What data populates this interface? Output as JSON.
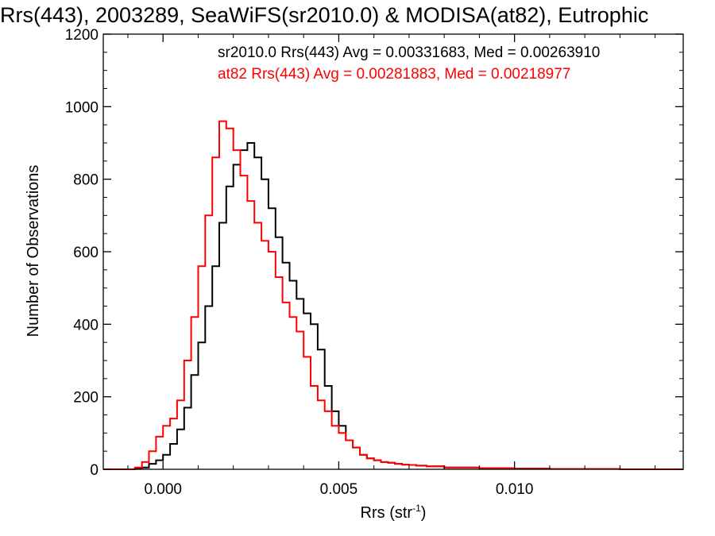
{
  "chart_data": {
    "type": "line",
    "style": "histogram-step",
    "title": "Rrs(443), 2003289, SeaWiFS(sr2010.0) & MODISA(at82), Eutrophic",
    "xlabel_base": "Rrs (str",
    "xlabel_sup": "-1",
    "xlabel_close": ")",
    "ylabel": "Number of Observations",
    "xlim": [
      -0.0017,
      0.0148
    ],
    "ylim": [
      0,
      1200
    ],
    "x_ticks": [
      0.0,
      0.005,
      0.01
    ],
    "x_tick_labels": [
      "0.000",
      "0.005",
      "0.010"
    ],
    "y_ticks": [
      0,
      200,
      400,
      600,
      800,
      1000,
      1200
    ],
    "y_tick_labels": [
      "0",
      "200",
      "400",
      "600",
      "800",
      "1000",
      "1200"
    ],
    "grid": false,
    "legend_position": "top-right",
    "series": [
      {
        "name": "sr2010.0 Rrs(443) Avg = 0.00331683, Med = 0.00263910",
        "color": "#000000",
        "x": [
          -0.0017,
          -0.001,
          -0.0008,
          -0.0006,
          -0.0004,
          -0.0002,
          0.0,
          0.0002,
          0.0004,
          0.0006,
          0.0008,
          0.001,
          0.0012,
          0.0014,
          0.0016,
          0.0018,
          0.002,
          0.0022,
          0.0024,
          0.0026,
          0.0028,
          0.003,
          0.0032,
          0.0034,
          0.0036,
          0.0038,
          0.004,
          0.0042,
          0.0044,
          0.0046,
          0.0048,
          0.005,
          0.0052,
          0.0054,
          0.0056,
          0.0058,
          0.006,
          0.0062,
          0.0064,
          0.0066,
          0.0068,
          0.007,
          0.0072,
          0.0075,
          0.008,
          0.009,
          0.01,
          0.011,
          0.012,
          0.013,
          0.014,
          0.0148
        ],
        "y": [
          0,
          0,
          2,
          5,
          15,
          25,
          40,
          70,
          110,
          170,
          260,
          350,
          450,
          560,
          680,
          780,
          840,
          880,
          900,
          860,
          800,
          720,
          640,
          570,
          520,
          470,
          430,
          400,
          330,
          230,
          160,
          120,
          80,
          60,
          40,
          30,
          25,
          20,
          18,
          15,
          13,
          12,
          10,
          8,
          5,
          3,
          2,
          1,
          1,
          0,
          0,
          0
        ]
      },
      {
        "name": "at82 Rrs(443) Avg = 0.00281883, Med = 0.00218977",
        "color": "#ff0000",
        "x": [
          -0.0017,
          -0.001,
          -0.0008,
          -0.0006,
          -0.0004,
          -0.0002,
          0.0,
          0.0002,
          0.0004,
          0.0006,
          0.0008,
          0.001,
          0.0012,
          0.0014,
          0.0016,
          0.0018,
          0.002,
          0.0022,
          0.0024,
          0.0026,
          0.0028,
          0.003,
          0.0032,
          0.0034,
          0.0036,
          0.0038,
          0.004,
          0.0042,
          0.0044,
          0.0046,
          0.0048,
          0.005,
          0.0052,
          0.0054,
          0.0056,
          0.0058,
          0.006,
          0.0062,
          0.0064,
          0.0066,
          0.0068,
          0.007,
          0.0072,
          0.0075,
          0.008,
          0.009,
          0.01,
          0.011,
          0.012,
          0.013,
          0.014,
          0.0148
        ],
        "y": [
          0,
          0,
          5,
          20,
          50,
          90,
          120,
          140,
          190,
          300,
          420,
          560,
          700,
          860,
          960,
          940,
          880,
          810,
          740,
          680,
          630,
          600,
          530,
          460,
          420,
          380,
          310,
          230,
          190,
          160,
          120,
          100,
          80,
          60,
          40,
          30,
          25,
          20,
          18,
          15,
          13,
          12,
          10,
          8,
          5,
          3,
          2,
          1,
          1,
          0,
          0,
          0
        ]
      }
    ]
  }
}
